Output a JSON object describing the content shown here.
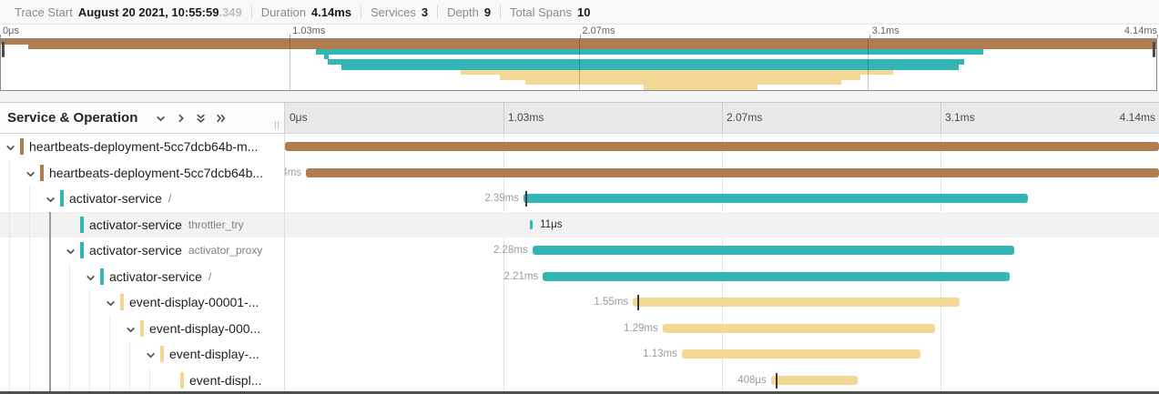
{
  "colors": {
    "brown": "#b07d51",
    "teal": "#32b5b5",
    "tan": "#f3d794",
    "row_highlight": "#f2f2f2"
  },
  "topbar": {
    "items": [
      {
        "label": "Trace Start",
        "value": "August 20 2021, 10:55:59",
        "suffix": ".349"
      },
      {
        "label": "Duration",
        "value": "4.14ms"
      },
      {
        "label": "Services",
        "value": "3"
      },
      {
        "label": "Depth",
        "value": "9"
      },
      {
        "label": "Total Spans",
        "value": "10"
      }
    ]
  },
  "ruler": {
    "ticks": [
      {
        "label": "0μs",
        "pct": 0
      },
      {
        "label": "1.03ms",
        "pct": 25
      },
      {
        "label": "2.07ms",
        "pct": 50
      },
      {
        "label": "3.1ms",
        "pct": 75
      },
      {
        "label": "4.14ms",
        "pct": 100
      }
    ]
  },
  "table_header": {
    "title": "Service & Operation",
    "icons": [
      {
        "name": "collapse-one-icon",
        "glyph": "chevron-down"
      },
      {
        "name": "expand-one-icon",
        "glyph": "chevron-right"
      },
      {
        "name": "collapse-all-icon",
        "glyph": "double-chevron-down"
      },
      {
        "name": "expand-all-icon",
        "glyph": "double-chevron-right"
      }
    ]
  },
  "rows": [
    {
      "service": "heartbeats-deployment-5cc7dcb64b-m...",
      "operation": "",
      "color": "brown",
      "depth": 0,
      "has_children": true,
      "highlighted": false,
      "bar": {
        "left_pct": 0,
        "width_pct": 100
      },
      "duration_label": "",
      "label_side": "left",
      "log_tick_pct": null
    },
    {
      "service": "heartbeats-deployment-5cc7dcb64b...",
      "operation": "",
      "color": "brown",
      "depth": 1,
      "has_children": true,
      "highlighted": false,
      "bar": {
        "left_pct": 2.4,
        "width_pct": 97.6
      },
      "duration_label": "4ms",
      "label_side": "left",
      "log_tick_pct": null
    },
    {
      "service": "activator-service",
      "operation": "/",
      "color": "teal",
      "depth": 2,
      "has_children": true,
      "highlighted": false,
      "bar": {
        "left_pct": 27.3,
        "width_pct": 57.7
      },
      "duration_label": "2.39ms",
      "label_side": "left",
      "log_tick_pct": 27.55
    },
    {
      "service": "activator-service",
      "operation": "throttler_try",
      "color": "teal",
      "depth": 3,
      "has_children": false,
      "highlighted": true,
      "bar": {
        "left_pct": 28.0,
        "width_pct": 0.35
      },
      "duration_label": "11μs",
      "label_side": "right",
      "log_tick_pct": null
    },
    {
      "service": "activator-service",
      "operation": "activator_proxy",
      "color": "teal",
      "depth": 3,
      "has_children": true,
      "highlighted": false,
      "bar": {
        "left_pct": 28.3,
        "width_pct": 55.1
      },
      "duration_label": "2.28ms",
      "label_side": "left",
      "log_tick_pct": null
    },
    {
      "service": "activator-service",
      "operation": "/",
      "color": "teal",
      "depth": 4,
      "has_children": true,
      "highlighted": false,
      "bar": {
        "left_pct": 29.5,
        "width_pct": 53.4
      },
      "duration_label": "2.21ms",
      "label_side": "left",
      "log_tick_pct": null
    },
    {
      "service": "event-display-00001-...",
      "operation": "",
      "color": "tan",
      "depth": 5,
      "has_children": true,
      "highlighted": false,
      "bar": {
        "left_pct": 39.8,
        "width_pct": 37.4
      },
      "duration_label": "1.55ms",
      "label_side": "left",
      "log_tick_pct": 40.3
    },
    {
      "service": "event-display-000...",
      "operation": "",
      "color": "tan",
      "depth": 6,
      "has_children": true,
      "highlighted": false,
      "bar": {
        "left_pct": 43.2,
        "width_pct": 31.2
      },
      "duration_label": "1.29ms",
      "label_side": "left",
      "log_tick_pct": null
    },
    {
      "service": "event-display-...",
      "operation": "",
      "color": "tan",
      "depth": 7,
      "has_children": true,
      "highlighted": false,
      "bar": {
        "left_pct": 45.4,
        "width_pct": 27.3
      },
      "duration_label": "1.13ms",
      "label_side": "left",
      "log_tick_pct": null
    },
    {
      "service": "event-displ...",
      "operation": "",
      "color": "tan",
      "depth": 8,
      "has_children": false,
      "highlighted": false,
      "bar": {
        "left_pct": 55.6,
        "width_pct": 9.9
      },
      "duration_label": "408μs",
      "label_side": "left",
      "log_tick_pct": 56.1
    }
  ]
}
